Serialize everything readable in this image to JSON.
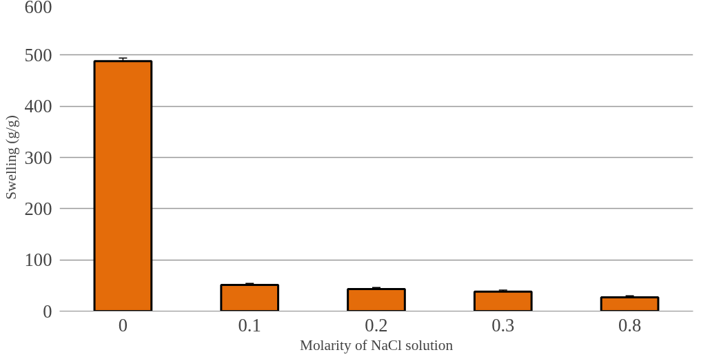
{
  "chart_data": {
    "type": "bar",
    "xlabel": "Molarity of NaCl solution",
    "ylabel": "Swelling (g/g)",
    "categories": [
      "0",
      "0.1",
      "0.2",
      "0.3",
      "0.8"
    ],
    "values": [
      488,
      51,
      43,
      38,
      27
    ],
    "errors": [
      6,
      3,
      3,
      3,
      3
    ],
    "color": "#e46c0a",
    "ylim": [
      0,
      600
    ],
    "yticks": [
      0,
      100,
      200,
      300,
      400,
      500,
      600
    ],
    "grid": "y"
  }
}
